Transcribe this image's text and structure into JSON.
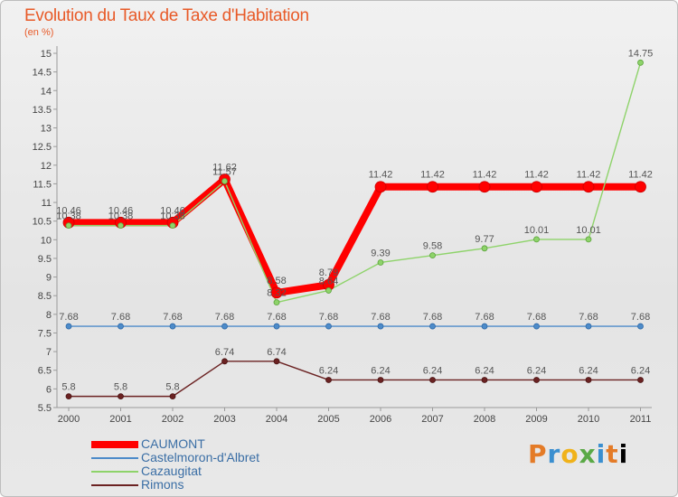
{
  "header": {
    "title": "Evolution du Taux de Taxe d'Habitation",
    "subtitle": "(en %)"
  },
  "logo": {
    "text": "Proxiti"
  },
  "chart_data": {
    "type": "line",
    "title": "Evolution du Taux de Taxe d'Habitation",
    "ylabel": "(en %)",
    "xlabel": "",
    "ylim": [
      5.5,
      15.0
    ],
    "yticks": [
      "5.5",
      "6",
      "6.5",
      "7",
      "7.5",
      "8",
      "8.5",
      "9",
      "9.5",
      "10",
      "10.5",
      "11",
      "11.5",
      "12",
      "12.5",
      "13",
      "13.5",
      "14",
      "14.5",
      "15"
    ],
    "grid": false,
    "legend_position": "bottom-left",
    "categories": [
      "2000",
      "2001",
      "2002",
      "2003",
      "2004",
      "2005",
      "2006",
      "2007",
      "2008",
      "2009",
      "2010",
      "2011"
    ],
    "series": [
      {
        "name": "CAUMONT",
        "color": "#ff0000",
        "values": [
          10.46,
          10.46,
          10.46,
          11.62,
          8.58,
          8.79,
          11.42,
          11.42,
          11.42,
          11.42,
          11.42,
          11.42
        ],
        "labels": [
          "10.46",
          "10.46",
          "10.46",
          "11.62",
          "8.58",
          "8.79",
          "11.42",
          "11.42",
          "11.42",
          "11.42",
          "11.42",
          "11.42"
        ]
      },
      {
        "name": "Castelmoron-d'Albret",
        "color": "#4d8bc9",
        "values": [
          7.68,
          7.68,
          7.68,
          7.68,
          7.68,
          7.68,
          7.68,
          7.68,
          7.68,
          7.68,
          7.68,
          7.68
        ],
        "labels": [
          "7.68",
          "7.68",
          "7.68",
          "7.68",
          "7.68",
          "7.68",
          "7.68",
          "7.68",
          "7.68",
          "7.68",
          "7.68",
          "7.68"
        ]
      },
      {
        "name": "Cazaugitat",
        "color": "#8ed36a",
        "values": [
          10.38,
          10.38,
          10.38,
          11.57,
          8.32,
          8.64,
          9.39,
          9.58,
          9.77,
          10.01,
          10.01,
          14.75
        ],
        "labels": [
          "10.38",
          "10.38",
          "10.38",
          "11.57",
          "8.32",
          "8.64",
          "9.39",
          "9.58",
          "9.77",
          "10.01",
          "10.01",
          "14.75"
        ]
      },
      {
        "name": "Rimons",
        "color": "#6b2222",
        "values": [
          5.8,
          5.8,
          5.8,
          6.74,
          6.74,
          6.24,
          6.24,
          6.24,
          6.24,
          6.24,
          6.24,
          6.24
        ],
        "labels": [
          "5.8",
          "5.8",
          "5.8",
          "6.74",
          "6.74",
          "6.24",
          "6.24",
          "6.24",
          "6.24",
          "6.24",
          "6.24",
          "6.24"
        ]
      }
    ]
  }
}
